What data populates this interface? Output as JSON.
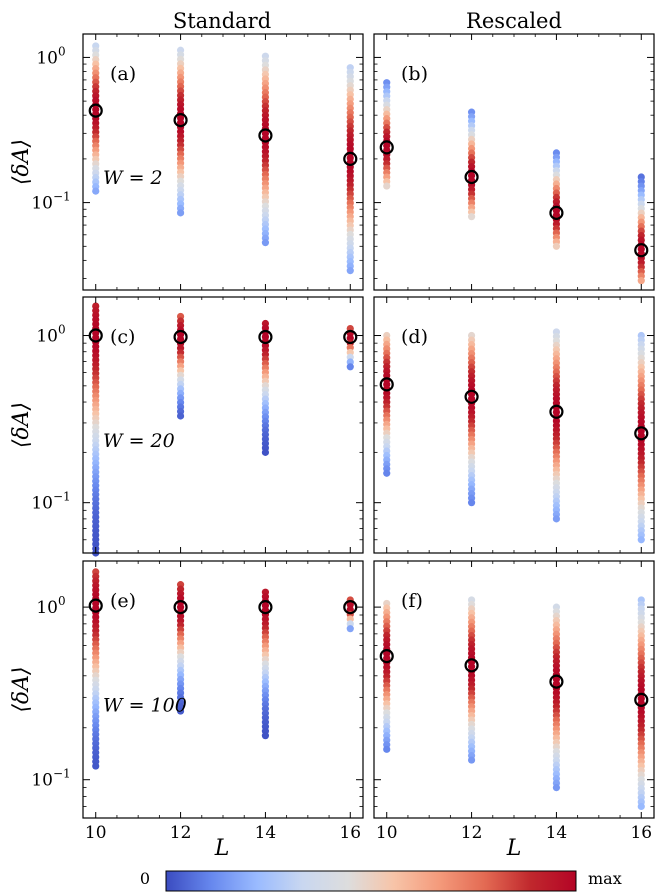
{
  "figure": {
    "column_titles": [
      "Standard",
      "Rescaled"
    ],
    "ylabel": "⟨δA⟩",
    "xlabel": "L",
    "colorbar": {
      "min_label": "0",
      "max_label": "max",
      "colors": [
        "#3b4cc0",
        "#6788ee",
        "#9abbff",
        "#c9d7f0",
        "#dddddd",
        "#f7c4a8",
        "#f49a7b",
        "#e36a53",
        "#c0282d",
        "#b40426"
      ]
    }
  },
  "chart_data": [
    {
      "type": "scatter",
      "panel": "(a)",
      "column": "Standard",
      "annotation": "W = 2",
      "x": [
        10,
        12,
        14,
        16
      ],
      "ylim": [
        0.025,
        1.45
      ],
      "yscale": "log",
      "mean": [
        0.43,
        0.37,
        0.29,
        0.2
      ],
      "spread": [
        [
          0.12,
          1.2
        ],
        [
          0.085,
          1.12
        ],
        [
          0.053,
          1.02
        ],
        [
          0.034,
          0.85
        ]
      ]
    },
    {
      "type": "scatter",
      "panel": "(b)",
      "column": "Rescaled",
      "annotation": "",
      "x": [
        10,
        12,
        14,
        16
      ],
      "ylim": [
        0.025,
        1.45
      ],
      "yscale": "log",
      "mean": [
        0.24,
        0.15,
        0.085,
        0.047
      ],
      "spread": [
        [
          0.13,
          0.67
        ],
        [
          0.08,
          0.42
        ],
        [
          0.05,
          0.22
        ],
        [
          0.029,
          0.15
        ]
      ]
    },
    {
      "type": "scatter",
      "panel": "(c)",
      "column": "Standard",
      "annotation": "W = 20",
      "x": [
        10,
        12,
        14,
        16
      ],
      "ylim": [
        0.05,
        1.7
      ],
      "yscale": "log",
      "mean": [
        1.0,
        0.98,
        0.98,
        0.98
      ],
      "spread": [
        [
          0.05,
          1.5
        ],
        [
          0.33,
          1.3
        ],
        [
          0.2,
          1.18
        ],
        [
          0.65,
          1.1
        ]
      ]
    },
    {
      "type": "scatter",
      "panel": "(d)",
      "column": "Rescaled",
      "annotation": "",
      "x": [
        10,
        12,
        14,
        16
      ],
      "ylim": [
        0.05,
        1.7
      ],
      "yscale": "log",
      "mean": [
        0.51,
        0.43,
        0.35,
        0.26
      ],
      "spread": [
        [
          0.15,
          1.0
        ],
        [
          0.1,
          1.0
        ],
        [
          0.08,
          1.05
        ],
        [
          0.06,
          1.0
        ]
      ]
    },
    {
      "type": "scatter",
      "panel": "(e)",
      "column": "Standard",
      "annotation": "W = 100",
      "x": [
        10,
        12,
        14,
        16
      ],
      "ylim": [
        0.06,
        1.85
      ],
      "yscale": "log",
      "mean": [
        1.02,
        1.0,
        1.0,
        1.0
      ],
      "spread": [
        [
          0.12,
          1.6
        ],
        [
          0.25,
          1.35
        ],
        [
          0.18,
          1.22
        ],
        [
          0.75,
          1.1
        ]
      ]
    },
    {
      "type": "scatter",
      "panel": "(f)",
      "column": "Rescaled",
      "annotation": "",
      "x": [
        10,
        12,
        14,
        16
      ],
      "ylim": [
        0.06,
        1.85
      ],
      "yscale": "log",
      "mean": [
        0.52,
        0.46,
        0.37,
        0.29
      ],
      "spread": [
        [
          0.15,
          1.05
        ],
        [
          0.13,
          1.1
        ],
        [
          0.09,
          1.0
        ],
        [
          0.07,
          1.1
        ]
      ]
    }
  ]
}
